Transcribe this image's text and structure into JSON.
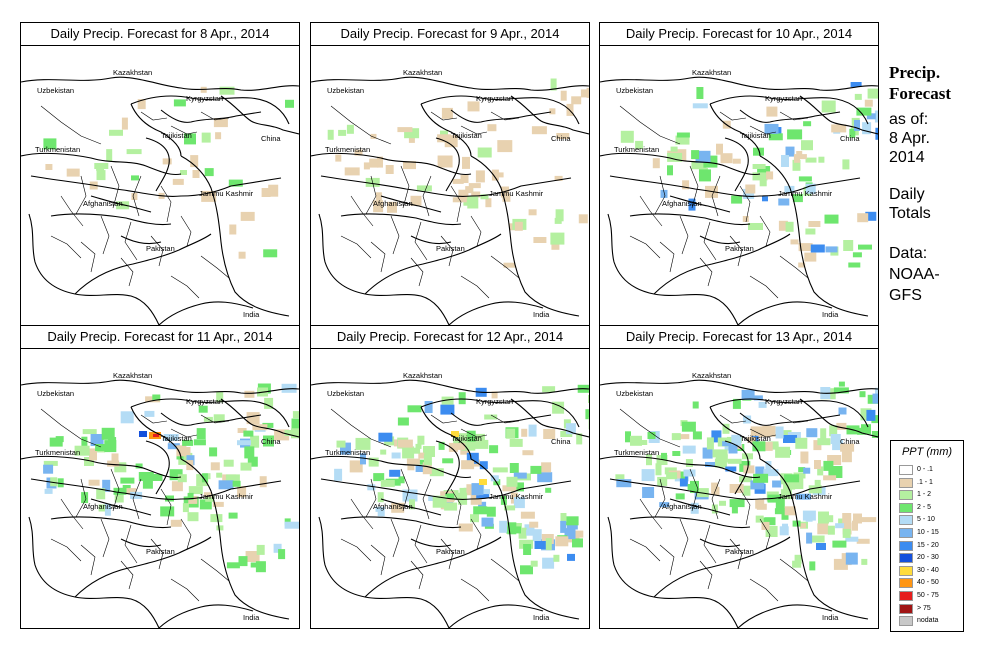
{
  "panels": [
    {
      "title": "Daily Precip. Forecast for  8 Apr., 2014",
      "intensity": 0
    },
    {
      "title": "Daily Precip. Forecast for  9 Apr., 2014",
      "intensity": 1
    },
    {
      "title": "Daily Precip. Forecast for  10 Apr., 2014",
      "intensity": 2
    },
    {
      "title": "Daily Precip. Forecast for  11 Apr., 2014",
      "intensity": 3
    },
    {
      "title": "Daily Precip. Forecast for  12 Apr., 2014",
      "intensity": 4
    },
    {
      "title": "Daily Precip. Forecast for  13 Apr., 2014",
      "intensity": 5
    }
  ],
  "map_labels": {
    "kazakhstan": "Kazakhstan",
    "uzbekistan": "Uzbekistan",
    "kyrgyzstan": "Kyrgyzstan",
    "tajikistan": "Tajikistan",
    "turkmenistan": "Turkmenistan",
    "china": "China",
    "afghanistan": "Afghanistan",
    "jammu_kashmir": "Jammu Kashmir",
    "pakistan": "Pakistan",
    "india": "India"
  },
  "side": {
    "title_line1": "Precip.",
    "title_line2": "Forecast",
    "asof_line1": "as of:",
    "asof_line2": "8 Apr.",
    "asof_line3": "2014",
    "daily_line1": "Daily",
    "daily_line2": "Totals",
    "data_line1": "Data:",
    "data_line2": "NOAA-",
    "data_line3": "GFS"
  },
  "legend": {
    "title": "PPT (mm)",
    "items": [
      {
        "label": "0 - .1",
        "color": "#ffffff"
      },
      {
        "label": ".1 - 1",
        "color": "#e8d2b0"
      },
      {
        "label": "1 - 2",
        "color": "#b4f0a0"
      },
      {
        "label": "2 - 5",
        "color": "#6ee66e"
      },
      {
        "label": "5 - 10",
        "color": "#b4dcf5"
      },
      {
        "label": "10 - 15",
        "color": "#78b4f0"
      },
      {
        "label": "15 - 20",
        "color": "#3c8cf0"
      },
      {
        "label": "20 - 30",
        "color": "#1450dc"
      },
      {
        "label": "30 - 40",
        "color": "#ffdc3c"
      },
      {
        "label": "40 - 50",
        "color": "#ff9614"
      },
      {
        "label": "50 - 75",
        "color": "#e61e1e"
      },
      {
        "label": "> 75",
        "color": "#a01414"
      },
      {
        "label": "nodata",
        "color": "#c8c8c8"
      }
    ]
  }
}
